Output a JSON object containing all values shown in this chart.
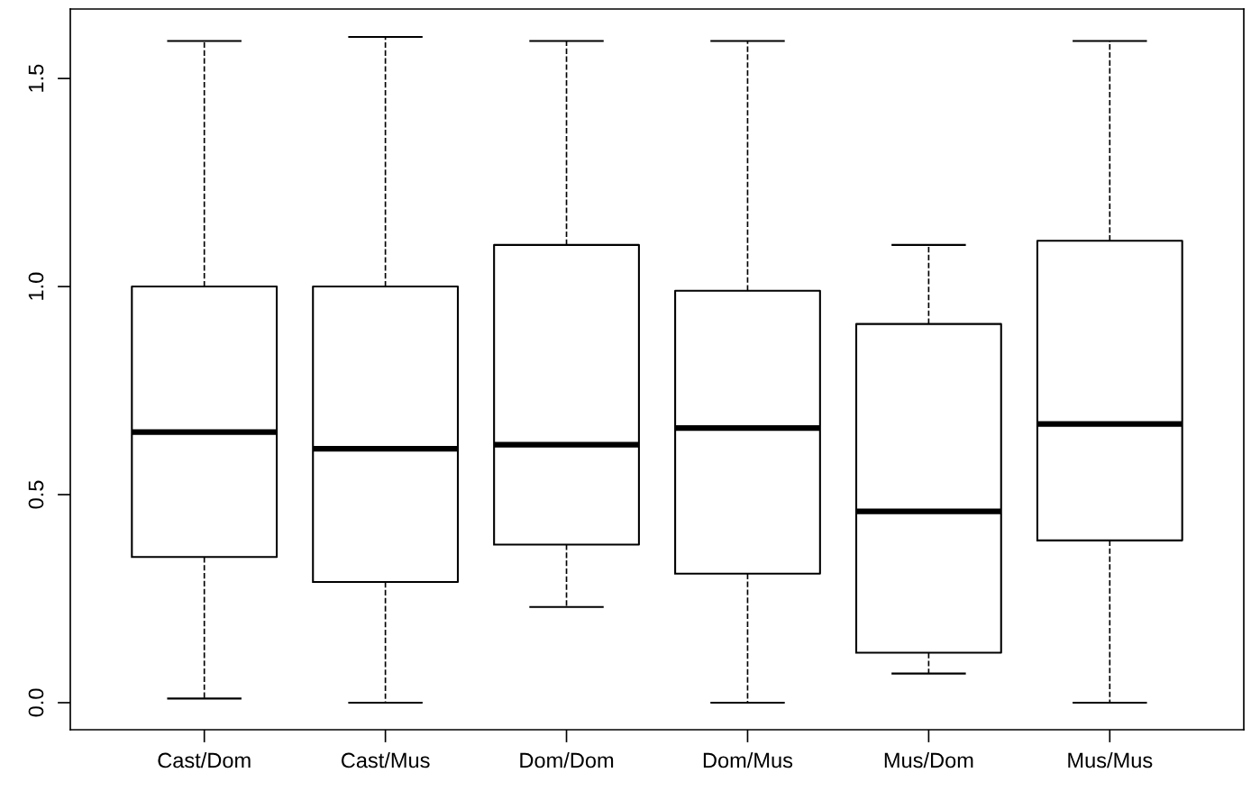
{
  "chart_data": {
    "type": "box",
    "categories": [
      "Cast/Dom",
      "Cast/Mus",
      "Dom/Dom",
      "Dom/Mus",
      "Mus/Dom",
      "Mus/Mus"
    ],
    "boxes": [
      {
        "low": 0.01,
        "q1": 0.35,
        "median": 0.65,
        "q3": 1.0,
        "high": 1.59
      },
      {
        "low": 0.0,
        "q1": 0.29,
        "median": 0.61,
        "q3": 1.0,
        "high": 1.6
      },
      {
        "low": 0.23,
        "q1": 0.38,
        "median": 0.62,
        "q3": 1.1,
        "high": 1.59
      },
      {
        "low": 0.0,
        "q1": 0.31,
        "median": 0.66,
        "q3": 0.99,
        "high": 1.59
      },
      {
        "low": 0.07,
        "q1": 0.12,
        "median": 0.46,
        "q3": 0.91,
        "high": 1.1
      },
      {
        "low": 0.0,
        "q1": 0.39,
        "median": 0.67,
        "q3": 1.11,
        "high": 1.59
      }
    ],
    "color": "#000000",
    "ylim": [
      -0.065,
      1.667
    ],
    "yticks": [
      {
        "value": 0,
        "label": "0.0"
      },
      0.5,
      {
        "value": 1,
        "label": "1.0"
      },
      1.5
    ],
    "grid": false,
    "line_style": "dashed"
  }
}
